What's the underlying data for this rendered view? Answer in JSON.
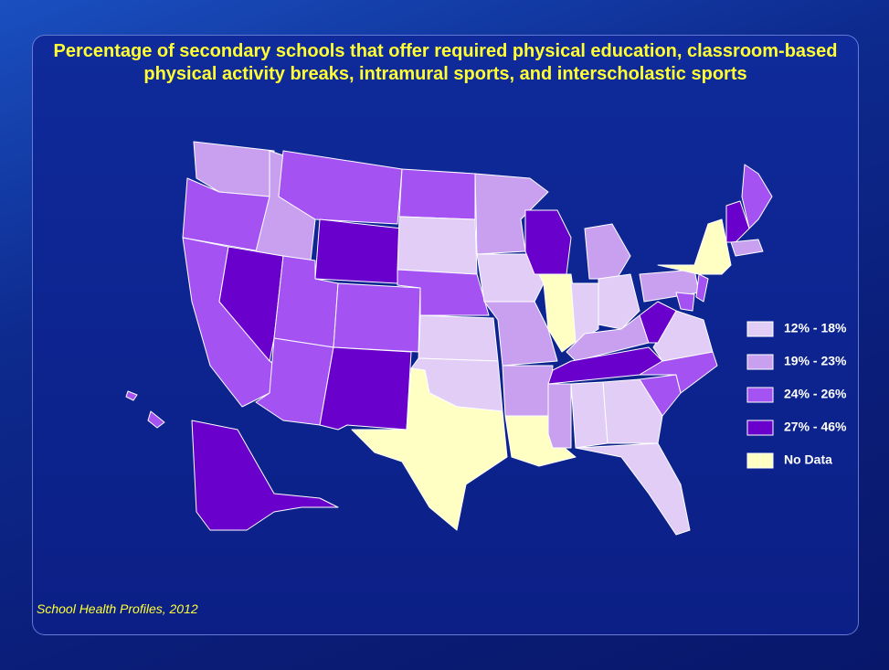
{
  "title": "Percentage of secondary schools that offer required physical education, classroom-based physical activity breaks, intramural sports, and interscholastic sports",
  "legend": [
    {
      "label": "12% - 18%",
      "color": "#e2cdf6"
    },
    {
      "label": "19% - 23%",
      "color": "#c99ff0"
    },
    {
      "label": "24% - 26%",
      "color": "#a453f2"
    },
    {
      "label": "27% - 46%",
      "color": "#6a00cc"
    },
    {
      "label": "No Data",
      "color": "#ffffc4"
    }
  ],
  "source": "School Health Profiles, 2012"
}
